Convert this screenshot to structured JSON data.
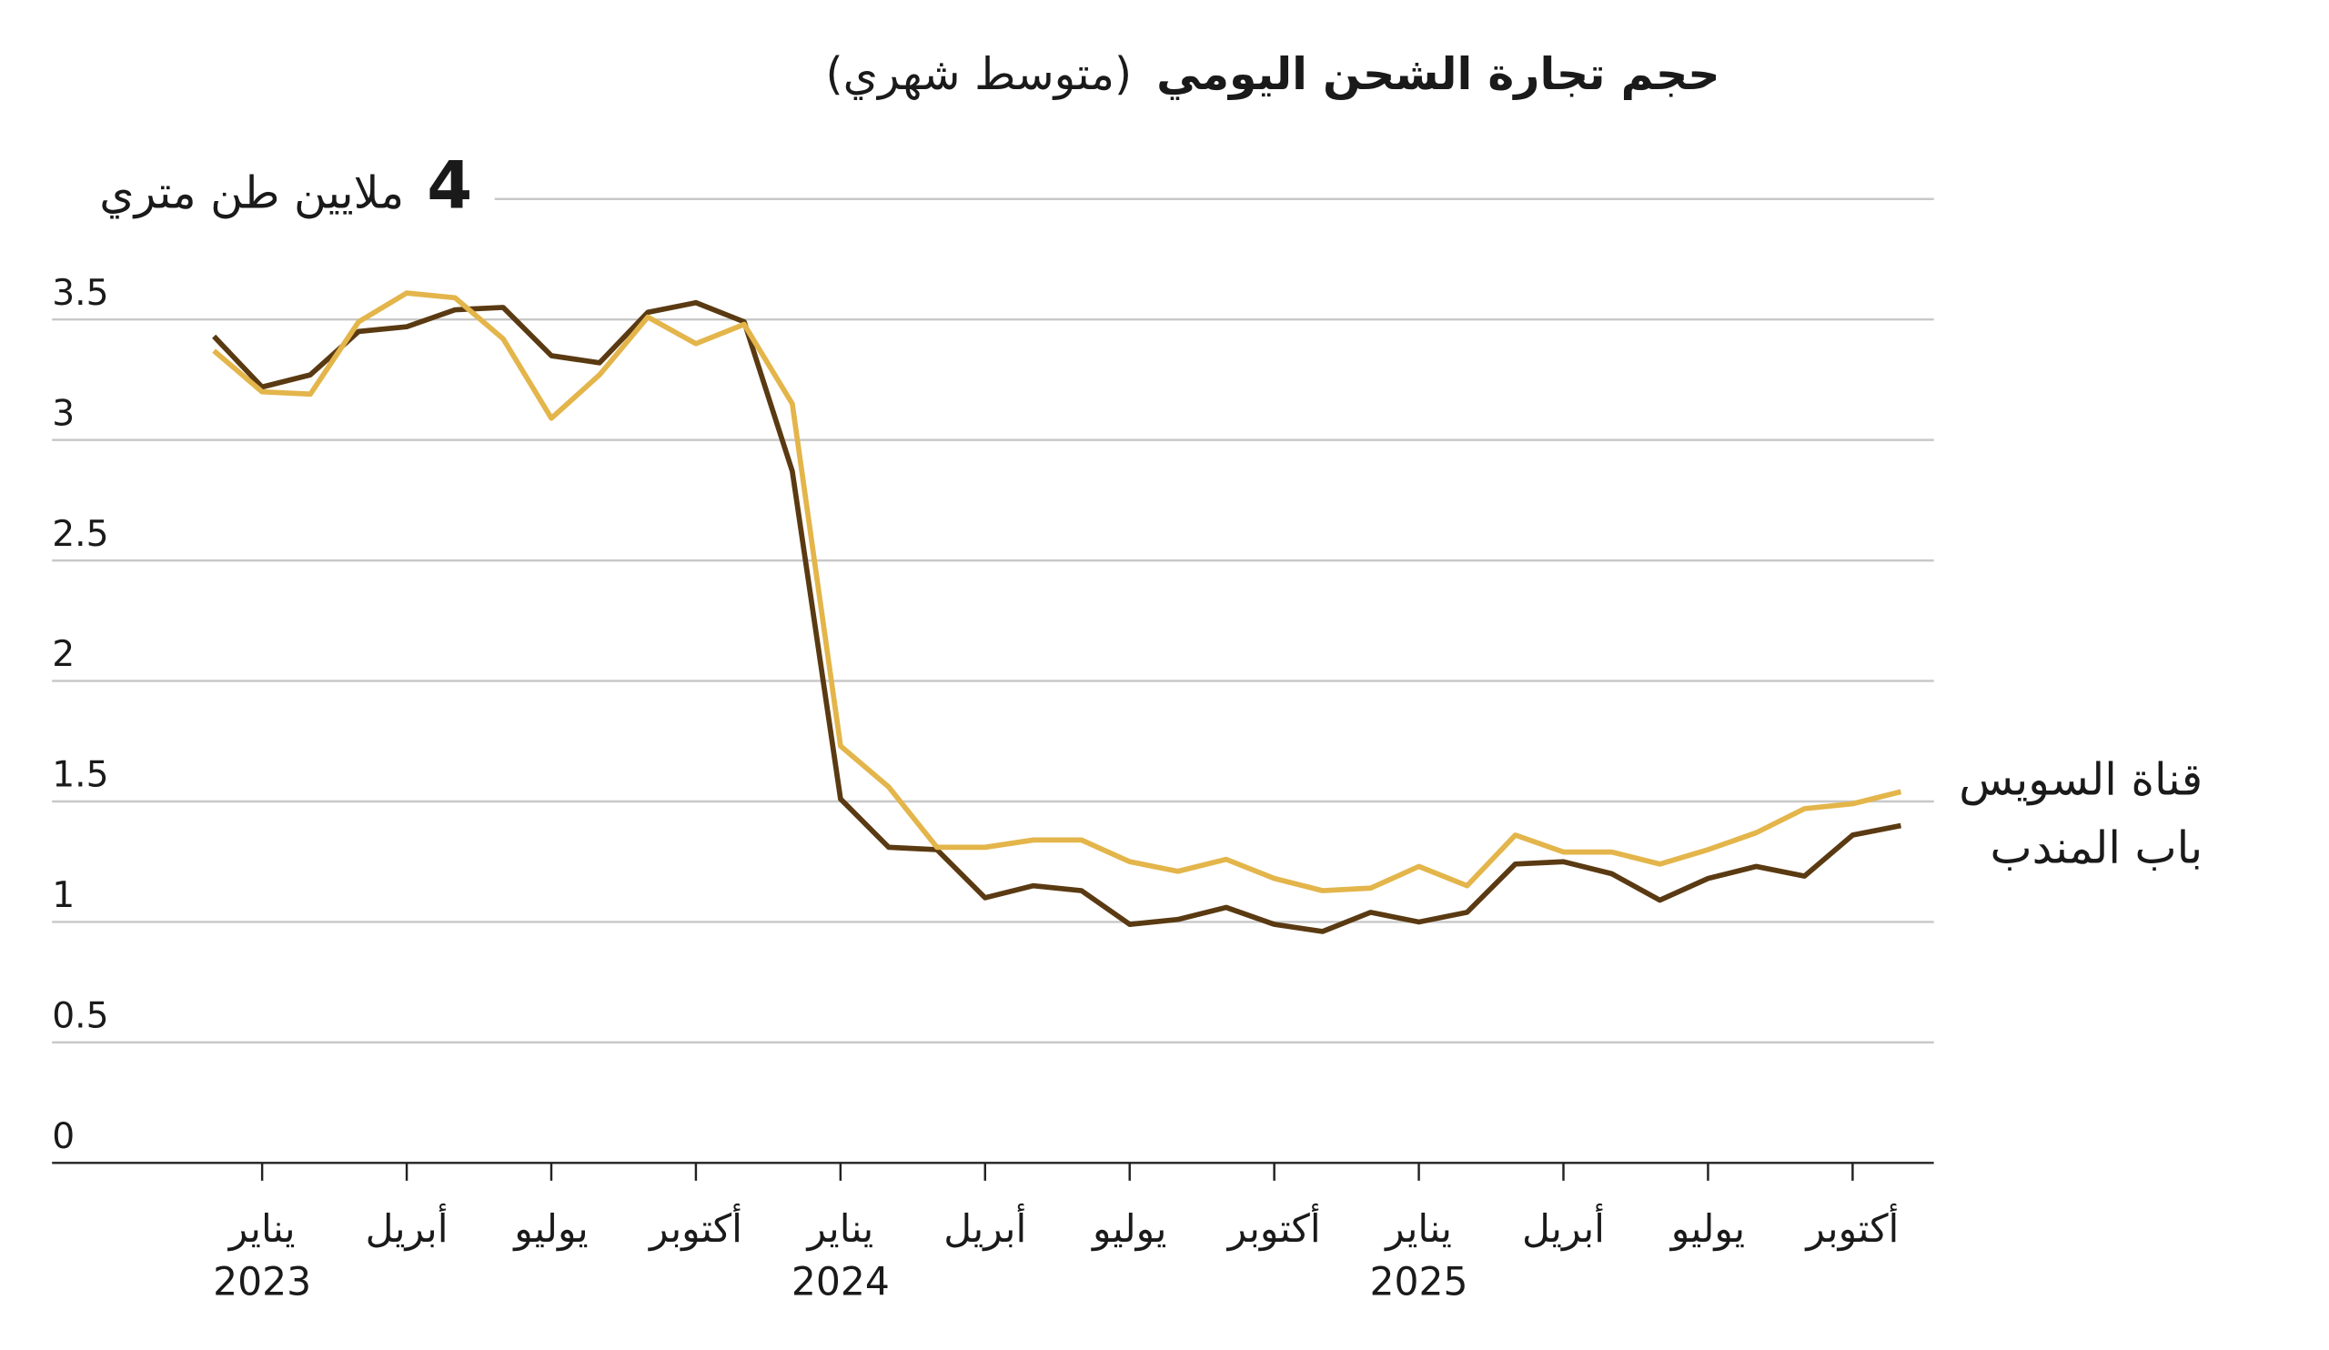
{
  "chart_data": {
    "type": "line",
    "title": "حجم تجارة الشحن اليومي",
    "subtitle": "(متوسط شهري)",
    "y_unit": "ملايين طن متري",
    "categories": [
      null,
      "يناير",
      null,
      null,
      "أبريل",
      null,
      null,
      "يوليو",
      null,
      null,
      "أكتوبر",
      null,
      null,
      "يناير",
      null,
      null,
      "أبريل",
      null,
      null,
      "يوليو",
      null,
      null,
      "أكتوبر",
      null,
      null,
      "يناير",
      null,
      null,
      "أبريل",
      null,
      null,
      "يوليو",
      null,
      null,
      "أكتوبر",
      null
    ],
    "years": [
      null,
      "2023",
      null,
      null,
      null,
      null,
      null,
      null,
      null,
      null,
      null,
      null,
      null,
      "2024",
      null,
      null,
      null,
      null,
      null,
      null,
      null,
      null,
      null,
      null,
      null,
      "2025",
      null,
      null,
      null,
      null,
      null,
      null,
      null,
      null,
      null,
      null
    ],
    "series": [
      {
        "name": "قناة السويس",
        "color": "#e3b54a",
        "values": [
          3.37,
          3.2,
          3.19,
          3.49,
          3.61,
          3.59,
          3.42,
          3.09,
          3.27,
          3.51,
          3.4,
          3.48,
          3.15,
          1.73,
          1.56,
          1.31,
          1.31,
          1.34,
          1.34,
          1.25,
          1.21,
          1.26,
          1.18,
          1.13,
          1.14,
          1.23,
          1.15,
          1.36,
          1.29,
          1.29,
          1.24,
          1.3,
          1.37,
          1.47,
          1.49,
          1.54
        ]
      },
      {
        "name": "باب المندب",
        "color": "#5a3a12",
        "values": [
          3.43,
          3.22,
          3.27,
          3.45,
          3.47,
          3.54,
          3.55,
          3.35,
          3.32,
          3.53,
          3.57,
          3.49,
          2.87,
          1.51,
          1.31,
          1.3,
          1.1,
          1.15,
          1.13,
          0.99,
          1.01,
          1.06,
          0.99,
          0.96,
          1.04,
          1.0,
          1.04,
          1.24,
          1.25,
          1.2,
          1.09,
          1.18,
          1.23,
          1.19,
          1.36,
          1.4
        ]
      }
    ],
    "ylim": [
      0,
      4
    ],
    "yticks": [
      0,
      0.5,
      1,
      1.5,
      2,
      2.5,
      3,
      3.5,
      4
    ],
    "grid": true
  }
}
